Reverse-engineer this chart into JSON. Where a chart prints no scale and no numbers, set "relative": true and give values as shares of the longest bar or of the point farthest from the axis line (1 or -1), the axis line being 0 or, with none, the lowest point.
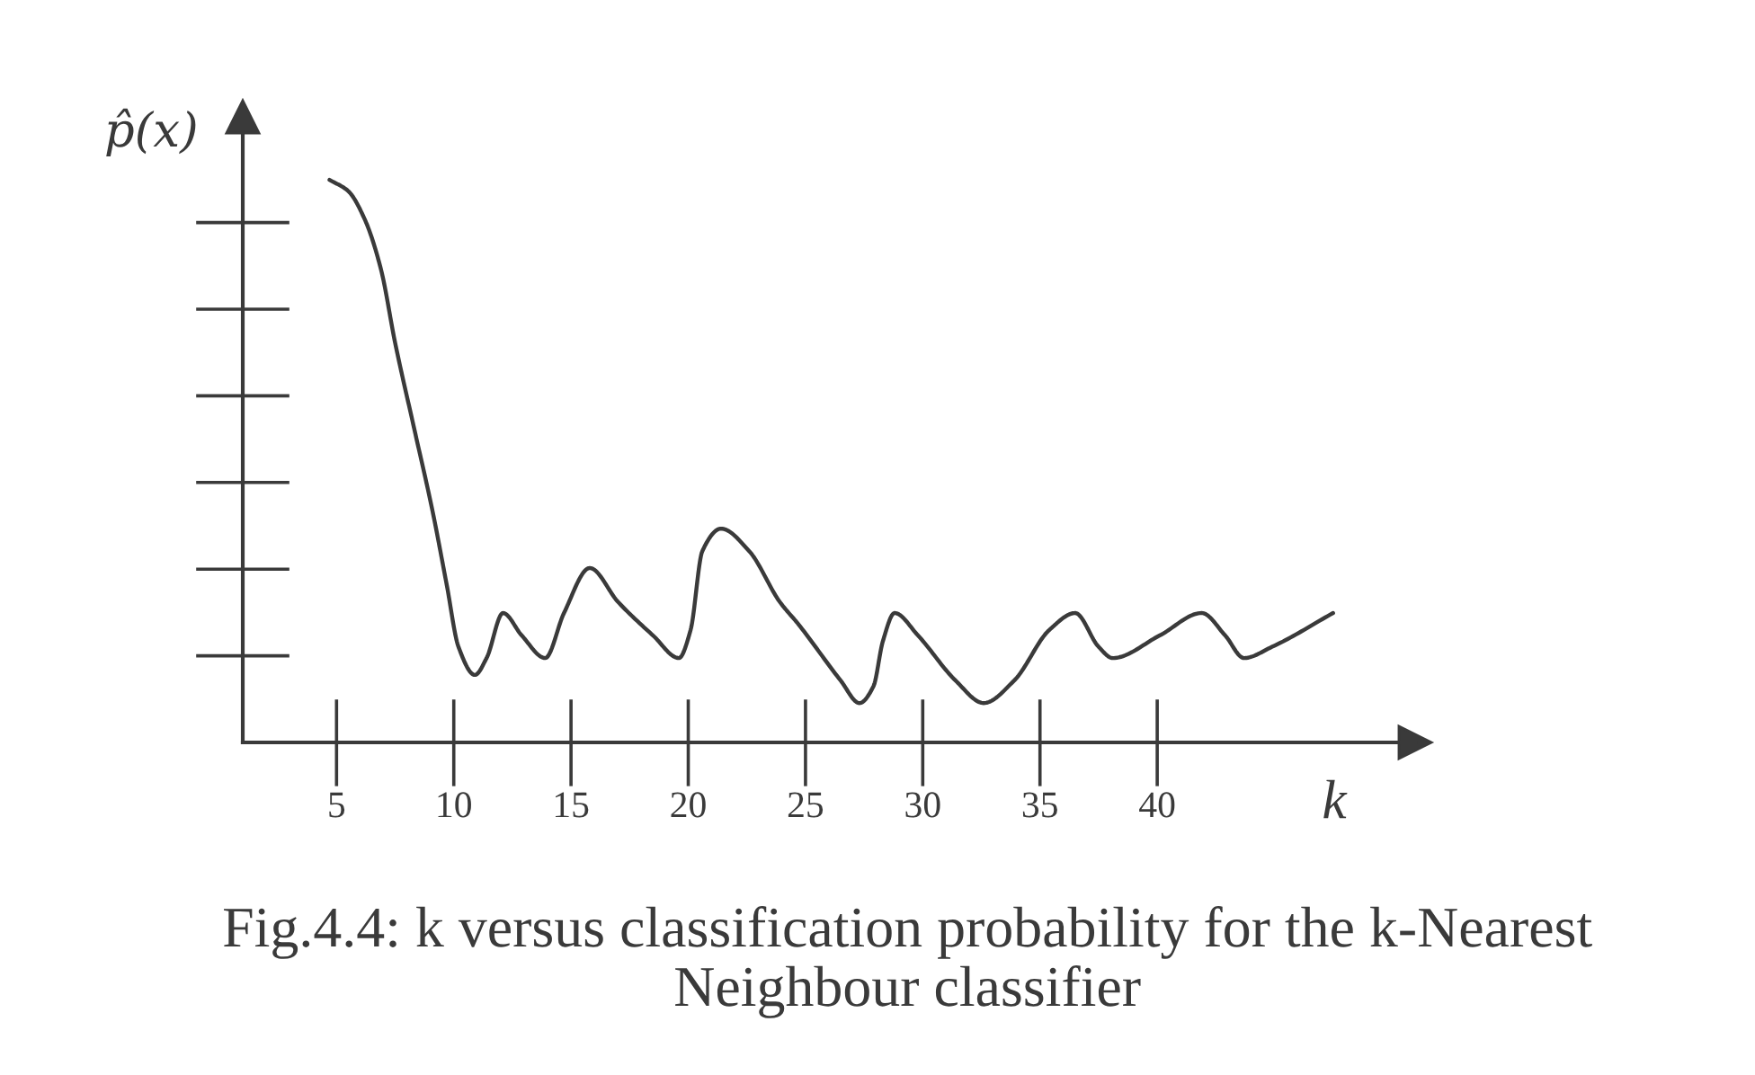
{
  "chart_data": {
    "type": "line",
    "ylabel": "p̂(x)",
    "xlabel": "k",
    "annotations": [
      "Fig.4.4: k versus classification probability for the k-Nearest\nNeighbour classifier"
    ],
    "relative": true,
    "xlim": [
      1,
      51
    ],
    "xticks": [
      5,
      10,
      15,
      20,
      25,
      30,
      35,
      40
    ],
    "tick_labels": "x",
    "marker": "none",
    "line_style": "solid",
    "series": [
      {
        "color": "#3a3a3a",
        "x": [
          4.7,
          5.5,
          6.2,
          6.9,
          7.5,
          8.3,
          9.1,
          9.7,
          10.2,
          10.9,
          11.4,
          12.1,
          12.9,
          13.9,
          14.7,
          15.8,
          17.0,
          18.5,
          19.6,
          20.1,
          20.6,
          21.4,
          22.6,
          23.9,
          24.7,
          26.5,
          27.3,
          27.9,
          28.3,
          28.8,
          29.8,
          31.4,
          32.6,
          33.9,
          35.4,
          36.5,
          37.5,
          38.1,
          40.1,
          41.9,
          42.9,
          43.7,
          44.9,
          47.5
        ],
        "values": [
          1.0,
          0.98,
          0.93,
          0.84,
          0.71,
          0.56,
          0.41,
          0.28,
          0.17,
          0.12,
          0.15,
          0.23,
          0.19,
          0.15,
          0.23,
          0.31,
          0.25,
          0.19,
          0.15,
          0.2,
          0.34,
          0.38,
          0.34,
          0.25,
          0.21,
          0.11,
          0.07,
          0.1,
          0.18,
          0.23,
          0.19,
          0.11,
          0.07,
          0.11,
          0.2,
          0.23,
          0.17,
          0.15,
          0.19,
          0.23,
          0.19,
          0.15,
          0.17,
          0.23
        ]
      }
    ]
  }
}
